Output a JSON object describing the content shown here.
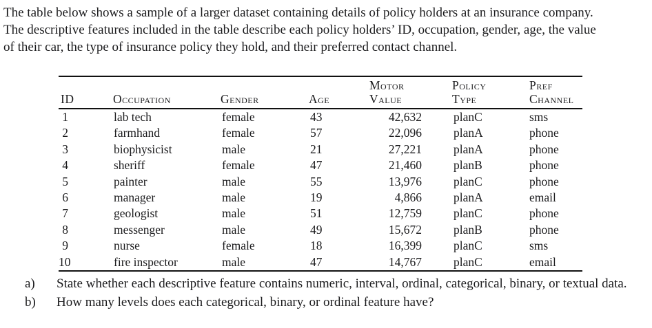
{
  "intro": {
    "lines": [
      "The table below shows a sample of a larger dataset containing details of policy holders at an insurance company.",
      "The descriptive features included in the table describe each policy holders’ ID, occupation, gender, age, the value",
      "of their car, the type of insurance policy they hold, and their preferred contact channel."
    ]
  },
  "table": {
    "headers": [
      {
        "line1": "",
        "line2": "ID"
      },
      {
        "line1": "",
        "line2": "Occupation"
      },
      {
        "line1": "",
        "line2": "Gender"
      },
      {
        "line1": "",
        "line2": "Age"
      },
      {
        "line1": "Motor",
        "line2": "Value"
      },
      {
        "line1": "Policy",
        "line2": "Type"
      },
      {
        "line1": "Pref",
        "line2": "Channel"
      }
    ],
    "rows": [
      [
        "1",
        "lab tech",
        "female",
        "43",
        "42,632",
        "planC",
        "sms"
      ],
      [
        "2",
        "farmhand",
        "female",
        "57",
        "22,096",
        "planA",
        "phone"
      ],
      [
        "3",
        "biophysicist",
        "male",
        "21",
        "27,221",
        "planA",
        "phone"
      ],
      [
        "4",
        "sheriff",
        "female",
        "47",
        "21,460",
        "planB",
        "phone"
      ],
      [
        "5",
        "painter",
        "male",
        "55",
        "13,976",
        "planC",
        "phone"
      ],
      [
        "6",
        "manager",
        "male",
        "19",
        "4,866",
        "planA",
        "email"
      ],
      [
        "7",
        "geologist",
        "male",
        "51",
        "12,759",
        "planC",
        "phone"
      ],
      [
        "8",
        "messenger",
        "male",
        "49",
        "15,672",
        "planB",
        "phone"
      ],
      [
        "9",
        "nurse",
        "female",
        "18",
        "16,399",
        "planC",
        "sms"
      ],
      [
        "10",
        "fire inspector",
        "male",
        "47",
        "14,767",
        "planC",
        "email"
      ]
    ]
  },
  "questions": [
    {
      "label": "a)",
      "text": "State whether each descriptive feature contains numeric, interval, ordinal, categorical, binary, or textual data."
    },
    {
      "label": "b)",
      "text": "How many levels does each categorical, binary, or ordinal feature have?"
    }
  ]
}
